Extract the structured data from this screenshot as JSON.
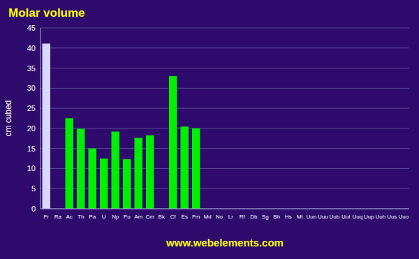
{
  "chart_data": {
    "type": "bar",
    "title": "Molar volume",
    "y_label": "cm cubed",
    "annotation": "www.webelements.com",
    "categories": [
      "Fr",
      "Ra",
      "Ac",
      "Th",
      "Pa",
      "U",
      "Np",
      "Pu",
      "Am",
      "Cm",
      "Bk",
      "Cf",
      "Es",
      "Fm",
      "Md",
      "No",
      "Lr",
      "Rf",
      "Db",
      "Sg",
      "Bh",
      "Hs",
      "Mt",
      "Uun",
      "Uuu",
      "Uub",
      "Uut",
      "Uuq",
      "Uup",
      "Uuh",
      "Uus",
      "Uuo"
    ],
    "values": [
      41.1,
      0.0,
      22.54,
      19.9,
      15.0,
      12.49,
      19.2,
      12.32,
      17.63,
      18.28,
      0.0,
      33.0,
      20.45,
      20.0,
      0.0,
      0.0,
      0.0,
      0.0,
      0.0,
      0.0,
      0.0,
      0.0,
      0.0,
      0.0,
      0.0,
      0.0,
      0.0,
      0.0,
      0.0,
      0.0,
      0.0,
      0.0
    ],
    "colors": [
      "#d8d8ff",
      "#00ee00",
      "#00ee00",
      "#00ee00",
      "#00ee00",
      "#00ee00",
      "#00ee00",
      "#00ee00",
      "#00ee00",
      "#00ee00",
      "#00ee00",
      "#00ee00",
      "#00ee00",
      "#00ee00",
      "#00ee00",
      "#00ee00",
      "#00ee00",
      "#00ee00",
      "#00ee00",
      "#00ee00",
      "#00ee00",
      "#00ee00",
      "#00ee00",
      "#00ee00",
      "#00ee00",
      "#00ee00",
      "#00ee00",
      "#00ee00",
      "#00ee00",
      "#00ee00",
      "#00ee00",
      "#00ee00"
    ],
    "ylim": [
      0,
      45
    ],
    "yticks": [
      0,
      5,
      10,
      15,
      20,
      25,
      30,
      35,
      40,
      45
    ],
    "grid": true
  }
}
